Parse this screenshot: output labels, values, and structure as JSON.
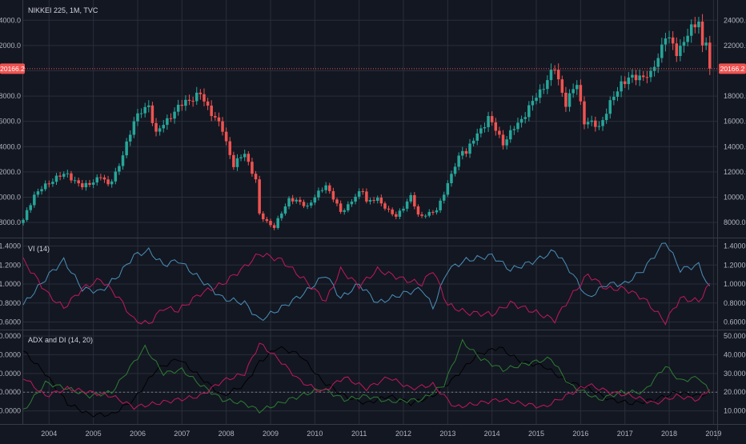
{
  "header": {
    "symbol_line": "NIKKEI 225, 1M, TVC"
  },
  "price_line": {
    "label": "20166.2",
    "value": 20166.2
  },
  "panes": {
    "vi": {
      "legend": "VI (14)"
    },
    "adx": {
      "legend": "ADX and DI (14, 20)"
    }
  },
  "colors": {
    "background": "#131722",
    "grid": "#2a2e39",
    "up": "#26a69a",
    "down": "#ef5350",
    "vi_plus": "#4a90b8",
    "vi_minus": "#c2185b",
    "adx": "#000000",
    "di_plus": "#2e7d32",
    "di_minus": "#c2185b",
    "level_line": "#787b86",
    "price_line": "#ef5350"
  },
  "chart_data": [
    {
      "type": "candlestick",
      "title": "NIKKEI 225, 1M, TVC",
      "x_axis": {
        "type": "date",
        "ticks": [
          "2004",
          "2005",
          "2006",
          "2007",
          "2008",
          "2009",
          "2010",
          "2011",
          "2012",
          "2013",
          "2014",
          "2015",
          "2016",
          "2017",
          "2018",
          "2019"
        ]
      },
      "y_axis": {
        "ticks": [
          "8000.0",
          "10000.0",
          "12000.0",
          "14000.0",
          "16000.0",
          "18000.0",
          "20000.0",
          "22000.0",
          "24000.0"
        ],
        "ylim": [
          6800,
          25600
        ]
      },
      "grid": true,
      "last_price": 20166.2,
      "anchors": [
        [
          "2003-06",
          8200
        ],
        [
          "2003-09",
          10200
        ],
        [
          "2004-03",
          11600
        ],
        [
          "2004-06",
          11800
        ],
        [
          "2004-10",
          10800
        ],
        [
          "2005-03",
          11600
        ],
        [
          "2005-05",
          11000
        ],
        [
          "2005-08",
          12400
        ],
        [
          "2005-12",
          16100
        ],
        [
          "2006-04",
          17300
        ],
        [
          "2006-06",
          15000
        ],
        [
          "2006-10",
          16500
        ],
        [
          "2007-02",
          17600
        ],
        [
          "2007-06",
          18100
        ],
        [
          "2007-09",
          16700
        ],
        [
          "2007-12",
          15300
        ],
        [
          "2008-03",
          12500
        ],
        [
          "2008-06",
          13500
        ],
        [
          "2008-09",
          11300
        ],
        [
          "2008-10",
          8600
        ],
        [
          "2009-02",
          7600
        ],
        [
          "2009-06",
          9900
        ],
        [
          "2009-11",
          9300
        ],
        [
          "2010-04",
          11000
        ],
        [
          "2010-08",
          8800
        ],
        [
          "2011-02",
          10600
        ],
        [
          "2011-03",
          9700
        ],
        [
          "2011-06",
          9800
        ],
        [
          "2011-11",
          8400
        ],
        [
          "2012-03",
          10100
        ],
        [
          "2012-05",
          8500
        ],
        [
          "2012-10",
          8900
        ],
        [
          "2012-12",
          10400
        ],
        [
          "2013-05",
          13800
        ],
        [
          "2013-06",
          13600
        ],
        [
          "2013-12",
          16300
        ],
        [
          "2014-04",
          14300
        ],
        [
          "2014-09",
          16200
        ],
        [
          "2014-12",
          17500
        ],
        [
          "2015-06",
          20200
        ],
        [
          "2015-09",
          17400
        ],
        [
          "2015-12",
          19000
        ],
        [
          "2016-02",
          16000
        ],
        [
          "2016-06",
          15600
        ],
        [
          "2016-12",
          19100
        ],
        [
          "2017-05",
          19600
        ],
        [
          "2017-08",
          19600
        ],
        [
          "2017-12",
          22800
        ],
        [
          "2018-03",
          21500
        ],
        [
          "2018-09",
          24100
        ],
        [
          "2018-10",
          21900
        ],
        [
          "2018-11",
          22400
        ],
        [
          "2018-12",
          20166.2
        ]
      ]
    },
    {
      "type": "line",
      "title": "VI (14)",
      "y_axis": {
        "ticks": [
          "0.6000",
          "0.8000",
          "1.0000",
          "1.2000",
          "1.4000"
        ],
        "ylim": [
          0.52,
          1.48
        ]
      },
      "grid": true,
      "series": [
        {
          "key": "vi_plus",
          "points": [
            [
              "2003-06",
              0.78
            ],
            [
              "2004-01",
              1.1
            ],
            [
              "2004-05",
              1.25
            ],
            [
              "2004-10",
              0.95
            ],
            [
              "2005-03",
              0.92
            ],
            [
              "2005-08",
              1.1
            ],
            [
              "2005-12",
              1.3
            ],
            [
              "2006-04",
              1.35
            ],
            [
              "2006-08",
              1.2
            ],
            [
              "2006-12",
              1.25
            ],
            [
              "2007-06",
              1.05
            ],
            [
              "2007-12",
              0.85
            ],
            [
              "2008-06",
              0.8
            ],
            [
              "2008-10",
              0.62
            ],
            [
              "2009-04",
              0.75
            ],
            [
              "2009-10",
              0.9
            ],
            [
              "2010-04",
              1.1
            ],
            [
              "2010-08",
              0.85
            ],
            [
              "2011-01",
              1.0
            ],
            [
              "2011-06",
              0.8
            ],
            [
              "2012-01",
              0.9
            ],
            [
              "2012-06",
              0.95
            ],
            [
              "2012-09",
              0.75
            ],
            [
              "2013-01",
              1.15
            ],
            [
              "2013-06",
              1.25
            ],
            [
              "2014-01",
              1.3
            ],
            [
              "2014-06",
              1.15
            ],
            [
              "2015-01",
              1.25
            ],
            [
              "2015-06",
              1.35
            ],
            [
              "2015-10",
              1.15
            ],
            [
              "2016-03",
              0.85
            ],
            [
              "2016-08",
              1.0
            ],
            [
              "2017-01",
              1.0
            ],
            [
              "2017-06",
              1.15
            ],
            [
              "2017-12",
              1.45
            ],
            [
              "2018-04",
              1.15
            ],
            [
              "2018-09",
              1.2
            ],
            [
              "2018-12",
              0.95
            ]
          ]
        },
        {
          "key": "vi_minus",
          "points": [
            [
              "2003-06",
              1.25
            ],
            [
              "2004-01",
              0.88
            ],
            [
              "2004-05",
              0.75
            ],
            [
              "2004-10",
              0.95
            ],
            [
              "2005-03",
              1.05
            ],
            [
              "2005-08",
              0.85
            ],
            [
              "2005-12",
              0.62
            ],
            [
              "2006-04",
              0.58
            ],
            [
              "2006-08",
              0.75
            ],
            [
              "2006-12",
              0.72
            ],
            [
              "2007-06",
              0.9
            ],
            [
              "2007-12",
              1.0
            ],
            [
              "2008-06",
              1.18
            ],
            [
              "2008-10",
              1.32
            ],
            [
              "2009-04",
              1.25
            ],
            [
              "2009-10",
              1.05
            ],
            [
              "2010-04",
              0.82
            ],
            [
              "2010-08",
              1.15
            ],
            [
              "2011-01",
              0.98
            ],
            [
              "2011-06",
              1.15
            ],
            [
              "2012-01",
              1.05
            ],
            [
              "2012-06",
              1.0
            ],
            [
              "2012-09",
              1.15
            ],
            [
              "2013-01",
              0.78
            ],
            [
              "2013-06",
              0.7
            ],
            [
              "2014-01",
              0.68
            ],
            [
              "2014-06",
              0.8
            ],
            [
              "2015-01",
              0.7
            ],
            [
              "2015-06",
              0.62
            ],
            [
              "2015-10",
              0.85
            ],
            [
              "2016-03",
              1.1
            ],
            [
              "2016-08",
              0.95
            ],
            [
              "2017-01",
              0.95
            ],
            [
              "2017-06",
              0.85
            ],
            [
              "2017-12",
              0.6
            ],
            [
              "2018-04",
              0.85
            ],
            [
              "2018-09",
              0.82
            ],
            [
              "2018-12",
              1.0
            ]
          ]
        }
      ]
    },
    {
      "type": "line",
      "title": "ADX and DI (14, 20)",
      "y_axis": {
        "ticks": [
          "10.0000",
          "20.0000",
          "30.0000",
          "40.0000",
          "50.0000"
        ],
        "ylim": [
          3,
          53
        ]
      },
      "grid": true,
      "level": 20,
      "series": [
        {
          "key": "adx",
          "points": [
            [
              "2003-06",
              42
            ],
            [
              "2003-12",
              30
            ],
            [
              "2004-06",
              14
            ],
            [
              "2004-12",
              8
            ],
            [
              "2005-06",
              8
            ],
            [
              "2005-12",
              16
            ],
            [
              "2006-06",
              32
            ],
            [
              "2006-12",
              38
            ],
            [
              "2007-06",
              28
            ],
            [
              "2007-12",
              18
            ],
            [
              "2008-06",
              24
            ],
            [
              "2008-10",
              36
            ],
            [
              "2009-03",
              44
            ],
            [
              "2009-09",
              40
            ],
            [
              "2010-03",
              26
            ],
            [
              "2010-09",
              18
            ],
            [
              "2011-03",
              14
            ],
            [
              "2011-09",
              18
            ],
            [
              "2012-03",
              14
            ],
            [
              "2012-09",
              18
            ],
            [
              "2013-03",
              28
            ],
            [
              "2013-09",
              40
            ],
            [
              "2014-03",
              44
            ],
            [
              "2014-09",
              36
            ],
            [
              "2015-03",
              34
            ],
            [
              "2015-09",
              26
            ],
            [
              "2016-03",
              22
            ],
            [
              "2016-09",
              16
            ],
            [
              "2017-03",
              14
            ],
            [
              "2017-09",
              16
            ],
            [
              "2018-03",
              20
            ],
            [
              "2018-09",
              18
            ],
            [
              "2018-12",
              20
            ]
          ]
        },
        {
          "key": "di_plus",
          "points": [
            [
              "2003-06",
              10
            ],
            [
              "2003-12",
              25
            ],
            [
              "2004-06",
              22
            ],
            [
              "2004-12",
              18
            ],
            [
              "2005-06",
              20
            ],
            [
              "2005-12",
              36
            ],
            [
              "2006-03",
              44
            ],
            [
              "2006-08",
              30
            ],
            [
              "2007-01",
              32
            ],
            [
              "2007-06",
              24
            ],
            [
              "2007-12",
              16
            ],
            [
              "2008-06",
              14
            ],
            [
              "2008-10",
              10
            ],
            [
              "2009-06",
              16
            ],
            [
              "2010-03",
              22
            ],
            [
              "2010-09",
              16
            ],
            [
              "2011-03",
              18
            ],
            [
              "2011-09",
              15
            ],
            [
              "2012-06",
              16
            ],
            [
              "2012-12",
              24
            ],
            [
              "2013-05",
              47
            ],
            [
              "2013-10",
              38
            ],
            [
              "2014-04",
              32
            ],
            [
              "2014-12",
              36
            ],
            [
              "2015-05",
              38
            ],
            [
              "2015-10",
              24
            ],
            [
              "2016-06",
              16
            ],
            [
              "2016-12",
              20
            ],
            [
              "2017-06",
              20
            ],
            [
              "2017-12",
              34
            ],
            [
              "2018-04",
              26
            ],
            [
              "2018-09",
              28
            ],
            [
              "2018-12",
              20
            ]
          ]
        },
        {
          "key": "di_minus",
          "points": [
            [
              "2003-06",
              28
            ],
            [
              "2003-12",
              18
            ],
            [
              "2004-06",
              22
            ],
            [
              "2004-12",
              20
            ],
            [
              "2005-06",
              18
            ],
            [
              "2005-12",
              12
            ],
            [
              "2006-06",
              14
            ],
            [
              "2006-12",
              16
            ],
            [
              "2007-06",
              18
            ],
            [
              "2007-12",
              26
            ],
            [
              "2008-06",
              30
            ],
            [
              "2008-10",
              46
            ],
            [
              "2009-03",
              38
            ],
            [
              "2009-09",
              26
            ],
            [
              "2010-03",
              20
            ],
            [
              "2010-09",
              28
            ],
            [
              "2011-03",
              22
            ],
            [
              "2011-09",
              28
            ],
            [
              "2012-03",
              22
            ],
            [
              "2012-09",
              24
            ],
            [
              "2013-03",
              12
            ],
            [
              "2013-09",
              14
            ],
            [
              "2014-03",
              16
            ],
            [
              "2014-09",
              14
            ],
            [
              "2015-03",
              12
            ],
            [
              "2015-09",
              18
            ],
            [
              "2016-03",
              24
            ],
            [
              "2016-09",
              20
            ],
            [
              "2017-03",
              18
            ],
            [
              "2017-09",
              14
            ],
            [
              "2018-03",
              18
            ],
            [
              "2018-09",
              16
            ],
            [
              "2018-12",
              22
            ]
          ]
        }
      ]
    }
  ]
}
